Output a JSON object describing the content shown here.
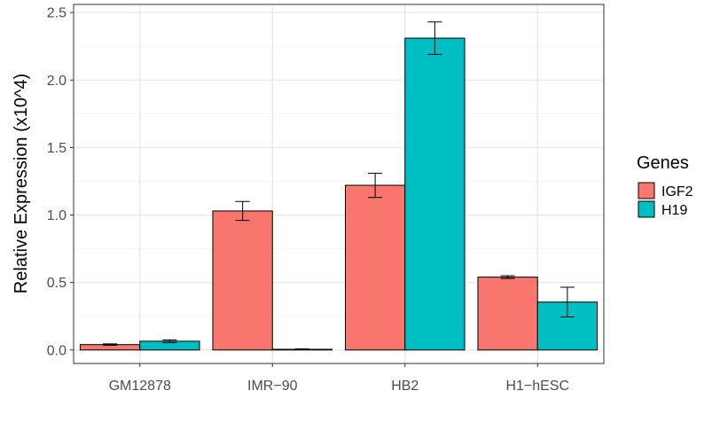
{
  "chart_data": {
    "type": "bar",
    "title": "",
    "xlabel": "",
    "ylabel": "Relative Expression (x10^4)",
    "categories": [
      "GM12878",
      "IMR−90",
      "HB2",
      "H1−hESC"
    ],
    "series": [
      {
        "name": "IGF2",
        "color": "#F8766D",
        "values": [
          0.04,
          1.03,
          1.22,
          0.54
        ],
        "error": [
          0.005,
          0.07,
          0.09,
          0.01
        ]
      },
      {
        "name": "H19",
        "color": "#00BFC4",
        "values": [
          0.065,
          0.005,
          2.31,
          0.355
        ],
        "error": [
          0.01,
          0.003,
          0.12,
          0.11
        ]
      }
    ],
    "ylim": [
      -0.1,
      2.56
    ],
    "yticks": [
      "0.0",
      "0.5",
      "1.0",
      "1.5",
      "2.0",
      "2.5"
    ],
    "grid": true,
    "legend": {
      "title": "Genes",
      "position": "right",
      "items": [
        "IGF2",
        "H19"
      ]
    }
  }
}
